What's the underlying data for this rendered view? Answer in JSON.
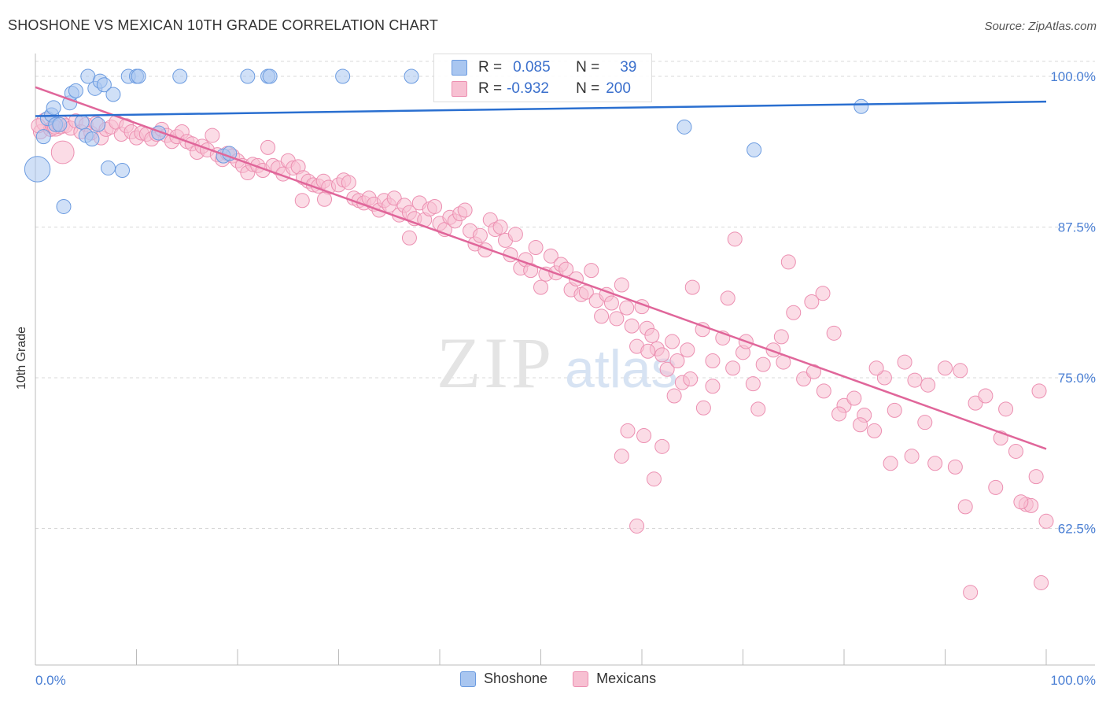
{
  "title": "SHOSHONE VS MEXICAN 10TH GRADE CORRELATION CHART",
  "source": "Source: ZipAtlas.com",
  "watermark": {
    "zip": "ZIP",
    "atlas": "atlas"
  },
  "stats": {
    "shoshone": {
      "r_label": "R =",
      "r_value": "0.085",
      "n_label": "N =",
      "n_value": "39"
    },
    "mexicans": {
      "r_label": "R =",
      "r_value": "-0.932",
      "n_label": "N =",
      "n_value": "200"
    }
  },
  "legend": {
    "shoshone": "Shoshone",
    "mexicans": "Mexicans"
  },
  "colors": {
    "shoshone_fill": "#a9c6f0",
    "shoshone_stroke": "#6b9be0",
    "shoshone_line": "#2a6fd0",
    "mexicans_fill": "#f7c0d2",
    "mexicans_stroke": "#ec8fb1",
    "mexicans_line": "#e0669a",
    "tick_label": "#4a7fd4",
    "grid": "#d8d8d8"
  },
  "chart_data": {
    "type": "scatter",
    "title": "SHOSHONE VS MEXICAN 10TH GRADE CORRELATION CHART",
    "xlabel": "",
    "ylabel": "10th Grade",
    "xlim": [
      0,
      100
    ],
    "ylim": [
      51.5,
      101.5
    ],
    "x_tick_labels": [
      "0.0%",
      "100.0%"
    ],
    "y_ticks": [
      62.5,
      75.0,
      87.5,
      100.0
    ],
    "y_tick_labels": [
      "62.5%",
      "75.0%",
      "87.5%",
      "100.0%"
    ],
    "grid": "horizontal dashed",
    "legend_position": "bottom-center",
    "series": [
      {
        "name": "Shoshone",
        "R": 0.085,
        "N": 39,
        "trend": {
          "x": [
            0,
            100
          ],
          "y": [
            96.7,
            97.9
          ]
        },
        "points": [
          [
            0.2,
            92.3,
            1.8
          ],
          [
            0.8,
            95.0,
            1
          ],
          [
            1.2,
            96.5,
            1
          ],
          [
            1.6,
            96.8,
            1
          ],
          [
            1.8,
            97.4,
            1
          ],
          [
            2.0,
            96.0,
            1
          ],
          [
            2.4,
            96.0,
            1
          ],
          [
            2.8,
            89.2,
            1
          ],
          [
            3.4,
            97.8,
            1
          ],
          [
            3.6,
            98.6,
            1
          ],
          [
            4.0,
            98.8,
            1
          ],
          [
            4.6,
            96.2,
            1
          ],
          [
            5.0,
            95.1,
            1
          ],
          [
            5.2,
            100.0,
            1
          ],
          [
            5.6,
            94.8,
            1
          ],
          [
            5.9,
            99.0,
            1
          ],
          [
            6.2,
            96.0,
            1
          ],
          [
            6.4,
            99.6,
            1
          ],
          [
            6.8,
            99.3,
            1
          ],
          [
            7.2,
            92.4,
            1
          ],
          [
            7.7,
            98.5,
            1
          ],
          [
            8.6,
            92.2,
            1
          ],
          [
            9.2,
            100.0,
            1
          ],
          [
            10.0,
            100.0,
            1
          ],
          [
            10.2,
            100.0,
            1
          ],
          [
            12.2,
            95.3,
            1
          ],
          [
            14.3,
            100.0,
            1
          ],
          [
            18.6,
            93.4,
            1
          ],
          [
            19.2,
            93.6,
            1
          ],
          [
            21.0,
            100.0,
            1
          ],
          [
            23.0,
            100.0,
            1
          ],
          [
            23.2,
            100.0,
            1
          ],
          [
            30.4,
            100.0,
            1
          ],
          [
            37.2,
            100.0,
            1
          ],
          [
            64.2,
            95.8,
            1
          ],
          [
            71.1,
            93.9,
            1
          ],
          [
            81.7,
            97.5,
            1
          ]
        ]
      },
      {
        "name": "Mexicans",
        "R": -0.932,
        "N": 200,
        "trend": {
          "x": [
            0,
            100
          ],
          "y": [
            99.1,
            69.1
          ]
        },
        "points": [
          [
            0.5,
            95.4,
            1
          ],
          [
            1.0,
            96.2,
            1.3
          ],
          [
            1.5,
            95.6,
            1
          ],
          [
            2.0,
            95.8,
            1.3
          ],
          [
            2.5,
            96.0,
            1.3
          ],
          [
            3.0,
            95.9,
            1
          ],
          [
            3.5,
            95.7,
            1
          ],
          [
            4.0,
            96.3,
            1
          ],
          [
            4.5,
            95.4,
            1
          ],
          [
            5.0,
            96.0,
            1
          ],
          [
            5.5,
            95.3,
            1
          ],
          [
            6.0,
            96.1,
            1
          ],
          [
            6.5,
            94.9,
            1
          ],
          [
            7.0,
            95.6,
            1
          ],
          [
            7.5,
            95.8,
            1
          ],
          [
            8.0,
            96.2,
            1
          ],
          [
            8.5,
            95.2,
            1
          ],
          [
            9.0,
            95.9,
            1
          ],
          [
            9.5,
            95.4,
            1
          ],
          [
            10.0,
            94.9,
            1
          ],
          [
            10.5,
            95.3,
            1
          ],
          [
            11.0,
            95.2,
            1
          ],
          [
            11.5,
            94.8,
            1
          ],
          [
            12.0,
            95.2,
            1
          ],
          [
            12.5,
            95.6,
            1
          ],
          [
            13.0,
            95.1,
            1
          ],
          [
            13.5,
            94.6,
            1
          ],
          [
            14.0,
            95.0,
            1
          ],
          [
            14.5,
            95.4,
            1
          ],
          [
            15.0,
            94.6,
            1
          ],
          [
            15.5,
            94.4,
            1
          ],
          [
            16.0,
            93.7,
            1
          ],
          [
            16.5,
            94.2,
            1
          ],
          [
            17.0,
            93.9,
            1
          ],
          [
            17.5,
            95.1,
            1
          ],
          [
            18.0,
            93.5,
            1
          ],
          [
            18.5,
            93.1,
            1
          ],
          [
            19.0,
            93.6,
            1
          ],
          [
            19.5,
            93.4,
            1
          ],
          [
            20.0,
            93.0,
            1
          ],
          [
            20.5,
            92.6,
            1
          ],
          [
            21.0,
            92.0,
            1
          ],
          [
            21.5,
            92.7,
            1
          ],
          [
            22.0,
            92.6,
            1
          ],
          [
            22.5,
            92.2,
            1
          ],
          [
            23.0,
            94.1,
            1
          ],
          [
            23.5,
            92.6,
            1
          ],
          [
            24.0,
            92.4,
            1
          ],
          [
            24.5,
            91.9,
            1
          ],
          [
            25.0,
            93.0,
            1
          ],
          [
            25.5,
            92.4,
            1
          ],
          [
            26.0,
            92.5,
            1
          ],
          [
            26.5,
            91.6,
            1
          ],
          [
            27.0,
            91.3,
            1
          ],
          [
            27.5,
            91.0,
            1
          ],
          [
            28.0,
            90.9,
            1
          ],
          [
            28.5,
            91.3,
            1
          ],
          [
            29.0,
            90.8,
            1
          ],
          [
            30.0,
            91.0,
            1
          ],
          [
            30.5,
            91.4,
            1
          ],
          [
            31.0,
            91.2,
            1
          ],
          [
            31.5,
            89.9,
            1
          ],
          [
            32.0,
            89.7,
            1
          ],
          [
            32.5,
            89.5,
            1
          ],
          [
            33.0,
            89.9,
            1
          ],
          [
            33.5,
            89.4,
            1
          ],
          [
            34.0,
            88.9,
            1
          ],
          [
            34.5,
            89.7,
            1
          ],
          [
            35.0,
            89.3,
            1
          ],
          [
            35.5,
            89.9,
            1
          ],
          [
            36.0,
            88.5,
            1
          ],
          [
            36.5,
            89.3,
            1
          ],
          [
            37.0,
            88.7,
            1
          ],
          [
            37.5,
            88.2,
            1
          ],
          [
            38.0,
            89.5,
            1
          ],
          [
            38.5,
            88.1,
            1
          ],
          [
            39.0,
            89.0,
            1
          ],
          [
            39.5,
            89.2,
            1
          ],
          [
            40.0,
            87.8,
            1
          ],
          [
            40.5,
            87.3,
            1
          ],
          [
            41.0,
            88.3,
            1
          ],
          [
            41.5,
            88.0,
            1
          ],
          [
            42.0,
            88.6,
            1
          ],
          [
            42.5,
            88.9,
            1
          ],
          [
            43.0,
            87.2,
            1
          ],
          [
            43.5,
            86.1,
            1
          ],
          [
            44.0,
            86.8,
            1
          ],
          [
            44.5,
            85.6,
            1
          ],
          [
            45.0,
            88.1,
            1
          ],
          [
            45.5,
            87.3,
            1
          ],
          [
            46.0,
            87.5,
            1
          ],
          [
            46.5,
            86.4,
            1
          ],
          [
            47.0,
            85.2,
            1
          ],
          [
            47.5,
            86.9,
            1
          ],
          [
            48.0,
            84.1,
            1
          ],
          [
            48.5,
            84.8,
            1
          ],
          [
            49.0,
            83.9,
            1
          ],
          [
            49.5,
            85.8,
            1
          ],
          [
            50.0,
            82.5,
            1
          ],
          [
            50.5,
            83.6,
            1
          ],
          [
            51.0,
            85.1,
            1
          ],
          [
            51.5,
            83.7,
            1
          ],
          [
            52.0,
            84.4,
            1
          ],
          [
            52.5,
            84.0,
            1
          ],
          [
            53.0,
            82.3,
            1
          ],
          [
            53.5,
            83.2,
            1
          ],
          [
            54.0,
            81.9,
            1
          ],
          [
            54.5,
            82.1,
            1
          ],
          [
            55.0,
            83.9,
            1
          ],
          [
            55.5,
            81.4,
            1
          ],
          [
            56.0,
            80.1,
            1
          ],
          [
            56.5,
            81.9,
            1
          ],
          [
            57.0,
            81.2,
            1
          ],
          [
            57.5,
            79.9,
            1
          ],
          [
            58.0,
            82.7,
            1
          ],
          [
            58.5,
            80.8,
            1
          ],
          [
            59.0,
            79.3,
            1
          ],
          [
            59.5,
            77.6,
            1
          ],
          [
            60.0,
            80.9,
            1
          ],
          [
            60.5,
            79.1,
            1
          ],
          [
            61.0,
            78.5,
            1
          ],
          [
            61.5,
            77.4,
            1
          ],
          [
            62.0,
            76.9,
            1
          ],
          [
            62.5,
            75.7,
            1
          ],
          [
            63.0,
            78.0,
            1
          ],
          [
            63.5,
            76.4,
            1
          ],
          [
            64.0,
            74.6,
            1
          ],
          [
            64.5,
            77.3,
            1
          ],
          [
            65.0,
            82.5,
            1
          ],
          [
            66.0,
            79.0,
            1
          ],
          [
            67.0,
            76.4,
            1
          ],
          [
            68.0,
            78.3,
            1
          ],
          [
            69.0,
            75.8,
            1
          ],
          [
            70.0,
            77.1,
            1
          ],
          [
            71.0,
            74.5,
            1
          ],
          [
            72.0,
            76.1,
            1
          ],
          [
            73.0,
            77.3,
            1
          ],
          [
            74.0,
            76.3,
            1
          ],
          [
            75.0,
            80.4,
            1
          ],
          [
            76.0,
            74.9,
            1
          ],
          [
            77.0,
            75.5,
            1
          ],
          [
            78.0,
            73.9,
            1
          ],
          [
            79.0,
            78.7,
            1
          ],
          [
            80.0,
            72.7,
            1
          ],
          [
            81.0,
            73.3,
            1
          ],
          [
            82.0,
            71.9,
            1
          ],
          [
            83.0,
            70.6,
            1
          ],
          [
            84.0,
            75.0,
            1
          ],
          [
            85.0,
            72.3,
            1
          ],
          [
            86.0,
            76.3,
            1
          ],
          [
            87.0,
            74.8,
            1
          ],
          [
            88.0,
            71.3,
            1
          ],
          [
            89.0,
            67.9,
            1
          ],
          [
            90.0,
            75.8,
            1
          ],
          [
            91.0,
            67.6,
            1
          ],
          [
            92.0,
            64.3,
            1
          ],
          [
            93.0,
            72.9,
            1
          ],
          [
            94.0,
            73.5,
            1
          ],
          [
            95.0,
            65.9,
            1
          ],
          [
            96.0,
            72.4,
            1
          ],
          [
            97.0,
            68.9,
            1
          ],
          [
            98.0,
            64.5,
            1
          ],
          [
            99.0,
            66.8,
            1
          ],
          [
            100.0,
            63.1,
            1
          ],
          [
            99.5,
            58.0,
            1
          ],
          [
            92.5,
            57.2,
            1
          ],
          [
            98.5,
            64.4,
            1
          ],
          [
            97.5,
            64.7,
            1
          ],
          [
            95.5,
            70.0,
            1
          ],
          [
            99.3,
            73.9,
            1
          ],
          [
            91.5,
            75.6,
            1
          ],
          [
            88.3,
            74.4,
            1
          ],
          [
            86.7,
            68.5,
            1
          ],
          [
            84.6,
            67.9,
            1
          ],
          [
            83.2,
            75.8,
            1
          ],
          [
            81.6,
            71.1,
            1
          ],
          [
            79.5,
            72.0,
            1
          ],
          [
            77.9,
            82.0,
            1
          ],
          [
            76.8,
            81.3,
            1
          ],
          [
            74.5,
            84.6,
            1
          ],
          [
            73.8,
            78.4,
            1
          ],
          [
            71.5,
            72.4,
            1
          ],
          [
            70.3,
            78.0,
            1
          ],
          [
            69.2,
            86.5,
            1
          ],
          [
            68.5,
            81.6,
            1
          ],
          [
            67.0,
            74.3,
            1
          ],
          [
            66.1,
            72.5,
            1
          ],
          [
            64.8,
            74.9,
            1
          ],
          [
            63.2,
            73.5,
            1
          ],
          [
            62.0,
            69.3,
            1
          ],
          [
            61.2,
            66.6,
            1
          ],
          [
            60.6,
            77.2,
            1
          ],
          [
            60.2,
            70.2,
            1
          ],
          [
            59.5,
            62.7,
            1
          ],
          [
            58.6,
            70.6,
            1
          ],
          [
            58.0,
            68.5,
            1
          ],
          [
            2.7,
            93.7,
            1.6
          ],
          [
            1.9,
            95.8,
            1
          ],
          [
            0.3,
            95.9,
            1
          ],
          [
            26.4,
            89.7,
            1
          ],
          [
            28.6,
            89.8,
            1
          ],
          [
            37.0,
            86.6,
            1
          ]
        ]
      }
    ]
  }
}
